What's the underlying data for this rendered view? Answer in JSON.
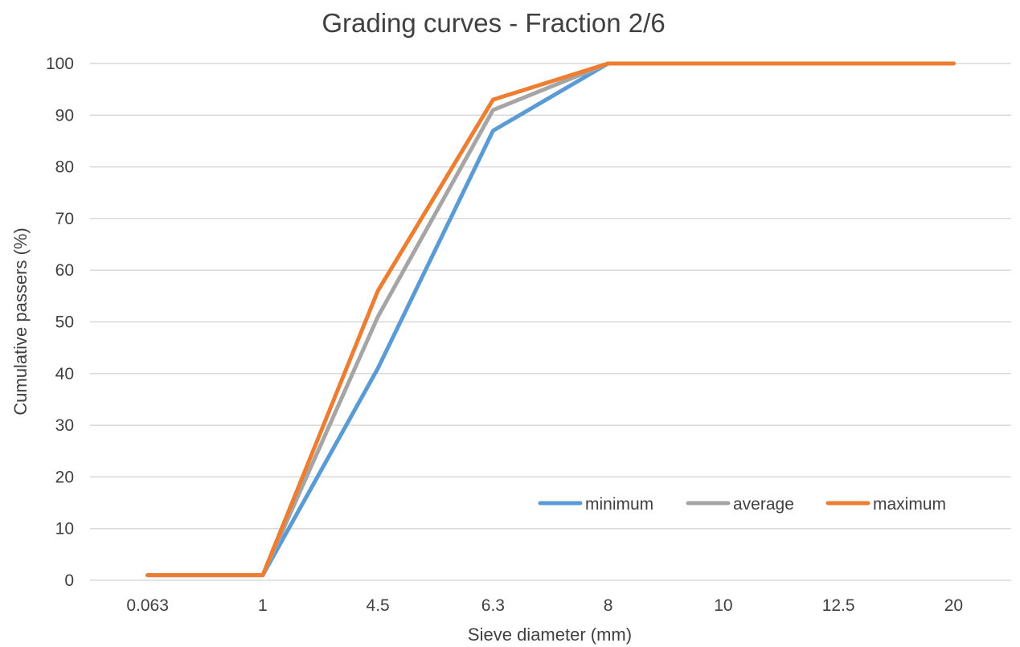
{
  "chart_data": {
    "type": "line",
    "title": "Grading curves - Fraction 2/6",
    "xlabel": "Sieve diameter (mm)",
    "ylabel": "Cumulative passers (%)",
    "categories": [
      "0.063",
      "1",
      "4.5",
      "6.3",
      "8",
      "10",
      "12.5",
      "20"
    ],
    "ylim": [
      0,
      100
    ],
    "yticks": [
      "0",
      "10",
      "20",
      "30",
      "40",
      "50",
      "60",
      "70",
      "80",
      "90",
      "100"
    ],
    "grid": "horizontal",
    "legend_position": "bottom-right",
    "series": [
      {
        "name": "minimum",
        "color": "#5B9BD5",
        "values": [
          1,
          1,
          41,
          87,
          100,
          100,
          100,
          100
        ]
      },
      {
        "name": "average",
        "color": "#A5A5A5",
        "values": [
          1,
          1,
          51,
          91,
          100,
          100,
          100,
          100
        ]
      },
      {
        "name": "maximum",
        "color": "#ED7D31",
        "values": [
          1,
          1,
          56,
          93,
          100,
          100,
          100,
          100
        ]
      }
    ]
  }
}
